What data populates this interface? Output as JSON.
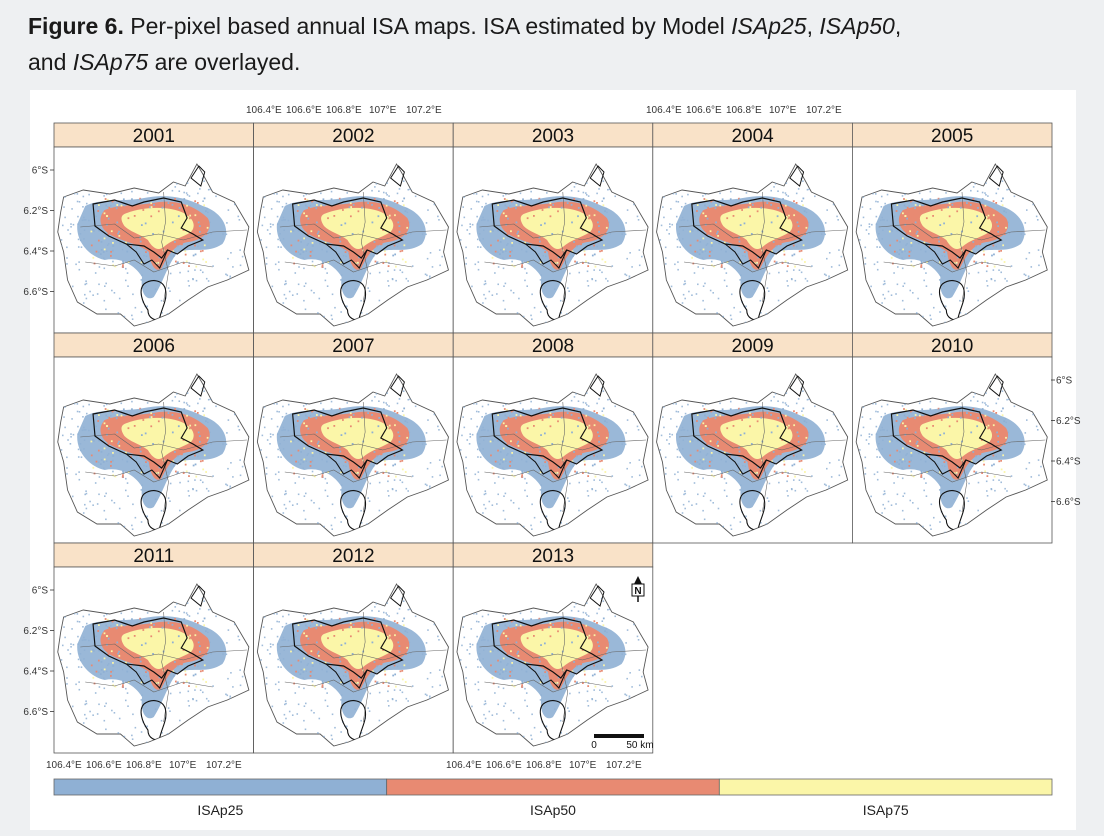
{
  "caption": {
    "label": "Figure 6.",
    "text_a": " Per-pixel based annual ISA maps. ISA estimated by Model ",
    "m1": "ISAp25",
    "sep1": ", ",
    "m2": "ISAp50",
    "sep2": ",",
    "text_b": "and ",
    "m3": "ISAp75",
    "text_c": " are overlayed."
  },
  "panels": [
    {
      "year": "2001"
    },
    {
      "year": "2002"
    },
    {
      "year": "2003"
    },
    {
      "year": "2004"
    },
    {
      "year": "2005"
    },
    {
      "year": "2006"
    },
    {
      "year": "2007"
    },
    {
      "year": "2008"
    },
    {
      "year": "2009"
    },
    {
      "year": "2010"
    },
    {
      "year": "2011"
    },
    {
      "year": "2012"
    },
    {
      "year": "2013"
    }
  ],
  "axes": {
    "lon_ticks": [
      "106.4°E",
      "106.6°E",
      "106.8°E",
      "107°E",
      "107.2°E"
    ],
    "lat_ticks": [
      "6°S",
      "6.2°S",
      "6.4°S",
      "6.6°S"
    ]
  },
  "scale_bar": {
    "start": "0",
    "end": "50 km"
  },
  "north_arrow": "N",
  "legend": [
    {
      "label": "ISAp25",
      "color": "#8fb0d4"
    },
    {
      "label": "ISAp50",
      "color": "#e88a72"
    },
    {
      "label": "ISAp75",
      "color": "#fbf6a8"
    }
  ],
  "colors": {
    "strip": "#f9e2c8",
    "isa25": "#8fb0d4",
    "isa50": "#e88a72",
    "isa75": "#fbf6a8"
  }
}
